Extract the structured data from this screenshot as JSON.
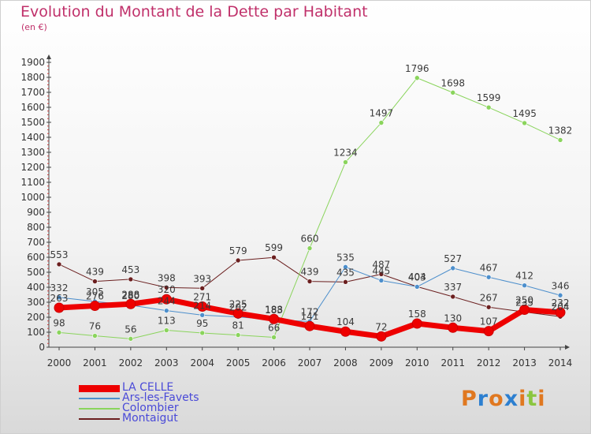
{
  "chart_data": {
    "type": "line",
    "title": "Evolution du Montant de la Dette par Habitant",
    "subtitle": "(en €)",
    "xlabel": "",
    "ylabel": "",
    "ylim": [
      0,
      1900
    ],
    "yticks": [
      0,
      100,
      200,
      300,
      400,
      500,
      600,
      700,
      800,
      900,
      1000,
      1100,
      1200,
      1300,
      1400,
      1500,
      1600,
      1700,
      1800,
      1900
    ],
    "x": [
      "2000",
      "2001",
      "2002",
      "2003",
      "2004",
      "2005",
      "2006",
      "2007",
      "2008",
      "2009",
      "2010",
      "2011",
      "2012",
      "2013",
      "2014"
    ],
    "grid": false,
    "legend_position": "bottom-left",
    "series": [
      {
        "name": "Montaigut",
        "color": "#6b1f1f",
        "width": 1,
        "values": [
          553,
          439,
          453,
          398,
          393,
          579,
          599,
          439,
          435,
          487,
          404,
          337,
          267,
          235,
          204
        ]
      },
      {
        "name": "Ars-les-Favets",
        "color": "#4d8fcc",
        "width": 1,
        "values": [
          332,
          305,
          280,
          244,
          214,
          202,
          183,
          172,
          535,
          445,
          403,
          527,
          467,
          412,
          346
        ]
      },
      {
        "name": "Colombier",
        "color": "#8ad45c",
        "width": 1,
        "values": [
          98,
          76,
          56,
          113,
          95,
          81,
          66,
          660,
          1234,
          1497,
          1796,
          1698,
          1599,
          1495,
          1382
        ]
      },
      {
        "name": "LA CELLE",
        "color": "#ee0000",
        "width": 7,
        "values": [
          263,
          276,
          288,
          320,
          271,
          225,
          188,
          141,
          104,
          72,
          158,
          130,
          107,
          250,
          232
        ]
      }
    ],
    "legend_order": [
      "LA CELLE",
      "Ars-les-Favets",
      "Colombier",
      "Montaigut"
    ]
  },
  "logo": {
    "text": "Proxiti",
    "colors": [
      "#e07820",
      "#2c7fd0",
      "#e07820",
      "#2c7fd0",
      "#e07820",
      "#8ac640",
      "#e07820"
    ]
  }
}
